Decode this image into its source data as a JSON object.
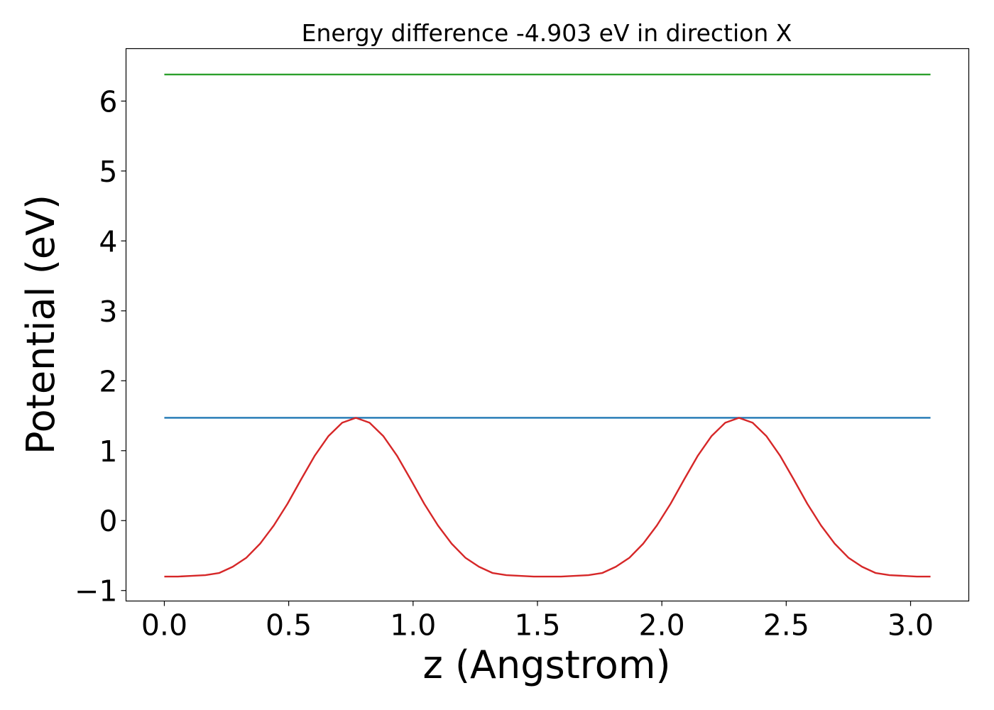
{
  "chart_data": {
    "type": "line",
    "title": "Energy difference -4.903 eV in direction X",
    "xlabel": "z (Angstrom)",
    "ylabel": "Potential (eV)",
    "xlim": [
      -0.154,
      3.234
    ],
    "ylim": [
      -1.15,
      6.75
    ],
    "x_ticks": [
      0.0,
      0.5,
      1.0,
      1.5,
      2.0,
      2.5,
      3.0
    ],
    "x_tick_labels": [
      "0.0",
      "0.5",
      "1.0",
      "1.5",
      "2.0",
      "2.5",
      "3.0"
    ],
    "y_ticks": [
      -1,
      0,
      1,
      2,
      3,
      4,
      5,
      6
    ],
    "y_tick_labels": [
      "−1",
      "0",
      "1",
      "2",
      "3",
      "4",
      "5",
      "6"
    ],
    "grid": false,
    "series": [
      {
        "color": "#2ca02c",
        "x": [
          0.0,
          3.08
        ],
        "y": [
          6.38,
          6.38
        ]
      },
      {
        "color": "#1f77b4",
        "x": [
          0.0,
          3.08
        ],
        "y": [
          1.47,
          1.47
        ]
      },
      {
        "color": "#d62728",
        "x": [
          0.0,
          0.055,
          0.11,
          0.165,
          0.22,
          0.275,
          0.33,
          0.385,
          0.44,
          0.495,
          0.55,
          0.605,
          0.66,
          0.715,
          0.77,
          0.825,
          0.88,
          0.935,
          0.99,
          1.045,
          1.1,
          1.155,
          1.21,
          1.265,
          1.32,
          1.375,
          1.43,
          1.485,
          1.54,
          1.595,
          1.65,
          1.705,
          1.76,
          1.815,
          1.87,
          1.925,
          1.98,
          2.035,
          2.09,
          2.145,
          2.2,
          2.255,
          2.31,
          2.365,
          2.42,
          2.475,
          2.53,
          2.585,
          2.64,
          2.695,
          2.75,
          2.805,
          2.86,
          2.915,
          2.97,
          3.025,
          3.08
        ],
        "y": [
          -0.8,
          -0.8,
          -0.79,
          -0.78,
          -0.75,
          -0.66,
          -0.53,
          -0.33,
          -0.07,
          0.24,
          0.59,
          0.93,
          1.21,
          1.4,
          1.47,
          1.4,
          1.21,
          0.93,
          0.59,
          0.24,
          -0.07,
          -0.33,
          -0.53,
          -0.66,
          -0.75,
          -0.78,
          -0.79,
          -0.8,
          -0.8,
          -0.8,
          -0.79,
          -0.78,
          -0.75,
          -0.66,
          -0.53,
          -0.33,
          -0.07,
          0.24,
          0.59,
          0.93,
          1.21,
          1.4,
          1.47,
          1.4,
          1.21,
          0.93,
          0.59,
          0.24,
          -0.07,
          -0.33,
          -0.53,
          -0.66,
          -0.75,
          -0.78,
          -0.79,
          -0.8,
          -0.8
        ]
      }
    ]
  }
}
